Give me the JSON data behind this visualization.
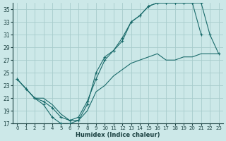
{
  "xlabel": "Humidex (Indice chaleur)",
  "bg_color": "#cce8e8",
  "grid_color": "#a8cccc",
  "line_color": "#1a6b6b",
  "xlim": [
    -0.5,
    23.5
  ],
  "ylim": [
    17,
    36
  ],
  "xticks": [
    0,
    1,
    2,
    3,
    4,
    5,
    6,
    7,
    8,
    9,
    10,
    11,
    12,
    13,
    14,
    15,
    16,
    17,
    18,
    19,
    20,
    21,
    22,
    23
  ],
  "yticks": [
    17,
    19,
    21,
    23,
    25,
    27,
    29,
    31,
    33,
    35
  ],
  "series1_x": [
    0,
    1,
    2,
    3,
    4,
    5,
    6,
    7,
    8,
    9,
    10,
    11,
    12,
    13,
    14,
    15,
    16,
    17,
    18,
    19,
    20,
    21
  ],
  "series1_y": [
    24,
    22.5,
    21,
    20,
    18,
    17,
    17,
    17.5,
    20,
    25,
    27.5,
    28.5,
    30,
    33,
    34,
    35.5,
    36,
    36,
    36,
    36,
    36,
    31
  ],
  "series2_x": [
    0,
    1,
    2,
    3,
    4,
    5,
    6,
    7,
    8,
    9,
    10,
    11,
    12,
    13,
    14,
    15,
    16,
    17,
    18,
    19,
    20,
    21,
    22,
    23
  ],
  "series2_y": [
    24,
    22.5,
    21,
    20.5,
    19.5,
    18,
    17.5,
    18,
    20.5,
    24,
    27,
    28.5,
    30.5,
    33,
    34,
    35.5,
    36,
    36,
    36,
    36,
    36,
    36,
    31,
    28
  ],
  "series3_x": [
    0,
    1,
    2,
    3,
    4,
    5,
    6,
    7,
    8,
    9,
    10,
    11,
    12,
    13,
    14,
    15,
    16,
    17,
    18,
    19,
    20,
    21,
    22,
    23
  ],
  "series3_y": [
    24,
    22.5,
    21,
    21,
    20,
    18.5,
    17.5,
    17.5,
    19,
    22,
    23,
    24.5,
    25.5,
    26.5,
    27,
    27.5,
    28,
    27,
    27,
    27.5,
    27.5,
    28,
    28,
    28
  ]
}
